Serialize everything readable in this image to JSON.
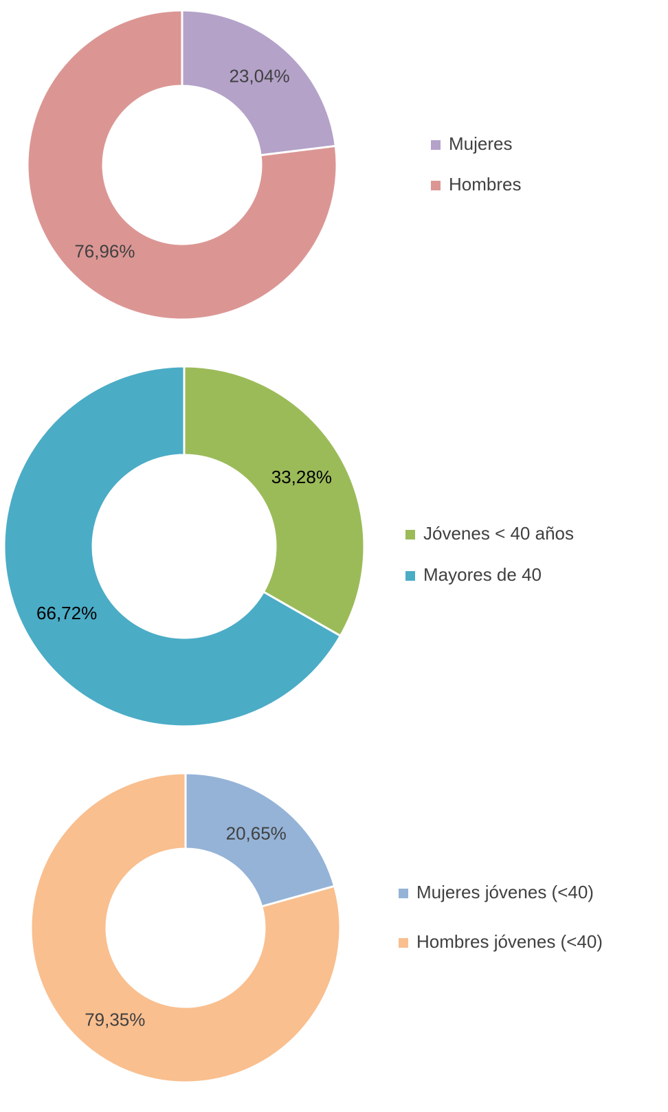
{
  "chart_data": [
    {
      "type": "donut",
      "categories": [
        "Mujeres",
        "Hombres"
      ],
      "values": [
        23.04,
        76.96
      ],
      "value_labels": [
        "23,04%",
        "76,96%"
      ],
      "colors": [
        "#b4a2c9",
        "#db9694"
      ],
      "label_color": "#404040"
    },
    {
      "type": "donut",
      "categories": [
        "Jóvenes < 40 años",
        "Mayores de 40"
      ],
      "values": [
        33.28,
        66.72
      ],
      "value_labels": [
        "33,28%",
        "66,72%"
      ],
      "colors": [
        "#9bbb59",
        "#4bacc6"
      ],
      "label_color": "#000000"
    },
    {
      "type": "donut",
      "categories": [
        "Mujeres jóvenes (<40)",
        "Hombres jóvenes (<40)"
      ],
      "values": [
        20.65,
        79.35
      ],
      "value_labels": [
        "20,65%",
        "79,35%"
      ],
      "colors": [
        "#95b3d7",
        "#f9bf8f"
      ],
      "label_color": "#404040"
    }
  ]
}
